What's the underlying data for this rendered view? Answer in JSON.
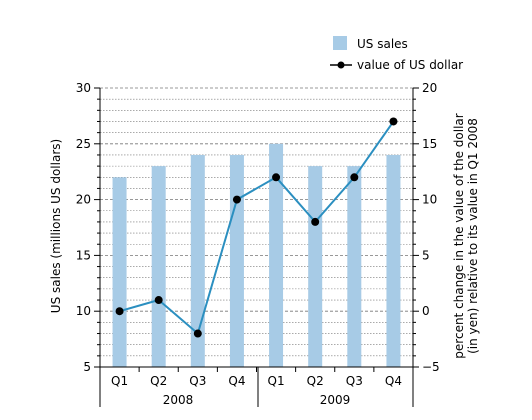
{
  "chart_data": {
    "type": "bar+line",
    "legend": {
      "placement": "top-right",
      "entries": [
        {
          "label": "US sales",
          "kind": "bar",
          "color": "#a7cbe6"
        },
        {
          "label": "value of US dollar",
          "kind": "line",
          "color": "#2b8fc0"
        }
      ]
    },
    "categories": [
      "Q1",
      "Q2",
      "Q3",
      "Q4",
      "Q1",
      "Q2",
      "Q3",
      "Q4"
    ],
    "year_groups": [
      {
        "label": "2008",
        "span": [
          0,
          3
        ]
      },
      {
        "label": "2009",
        "span": [
          4,
          7
        ]
      }
    ],
    "left_axis": {
      "label": "US sales (millions US dollars)",
      "ylim": [
        5,
        30
      ],
      "ticks": [
        "5",
        "10",
        "15",
        "20",
        "25",
        "30"
      ]
    },
    "right_axis": {
      "label_lines": [
        "percent change in the value of the dollar",
        "(in yen) relative to its value in Q1 2008"
      ],
      "ylim": [
        -5,
        20
      ],
      "ticks": [
        "−5",
        "0",
        "5",
        "10",
        "15",
        "20"
      ]
    },
    "series": [
      {
        "name": "US sales",
        "axis": "left",
        "values": [
          22,
          23,
          24,
          24,
          25,
          23,
          23,
          24
        ]
      },
      {
        "name": "value of US dollar",
        "axis": "right",
        "values": [
          0,
          1,
          -2,
          10,
          12,
          8,
          12,
          17
        ]
      }
    ],
    "colors": {
      "bar": "#a7cbe6",
      "line": "#2b8fc0",
      "marker": "#000000",
      "grid": "#777777"
    },
    "grid": true
  }
}
